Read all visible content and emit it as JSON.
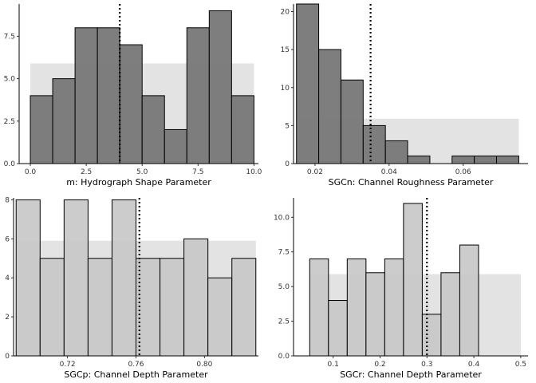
{
  "chart_data": [
    {
      "type": "bar",
      "xlabel": "m: Hydrograph Shape Parameter",
      "ylabel": "",
      "xlim": [
        -0.5,
        10.2
      ],
      "ylim": [
        0,
        9.4
      ],
      "xticks": [
        0.0,
        2.5,
        5.0,
        7.5,
        10.0
      ],
      "xtick_labels": [
        "0.0",
        "2.5",
        "5.0",
        "7.5",
        "10.0"
      ],
      "yticks": [
        0.0,
        2.5,
        5.0,
        7.5
      ],
      "ytick_labels": [
        "0.0",
        "2.5",
        "5.0",
        "7.5"
      ],
      "bins": [
        [
          0.0,
          1.0
        ],
        [
          1.0,
          2.0
        ],
        [
          2.0,
          3.0
        ],
        [
          3.0,
          4.0
        ],
        [
          4.0,
          5.0
        ],
        [
          5.0,
          6.0
        ],
        [
          6.0,
          7.0
        ],
        [
          7.0,
          8.0
        ],
        [
          8.0,
          9.0
        ],
        [
          9.0,
          10.0
        ]
      ],
      "values": [
        4,
        5,
        8,
        8,
        7,
        4,
        2,
        8,
        9,
        4
      ],
      "prior_band": {
        "x": [
          0.0,
          10.0
        ],
        "y": 5.9
      },
      "reference_line_x": 4.0,
      "bar_color": "#777777",
      "bar_opacity": 0.95
    },
    {
      "type": "bar",
      "xlabel": "SGCn: Channel Roughness Parameter",
      "ylabel": "",
      "xlim": [
        0.0142,
        0.0775
      ],
      "ylim": [
        0,
        21
      ],
      "xticks": [
        0.02,
        0.04,
        0.06
      ],
      "xtick_labels": [
        "0.02",
        "0.04",
        "0.06"
      ],
      "yticks": [
        0,
        5,
        10,
        15,
        20
      ],
      "ytick_labels": [
        "0",
        "5",
        "10",
        "15",
        "20"
      ],
      "bins": [
        [
          0.015,
          0.021
        ],
        [
          0.021,
          0.027
        ],
        [
          0.027,
          0.033
        ],
        [
          0.033,
          0.039
        ],
        [
          0.039,
          0.045
        ],
        [
          0.045,
          0.051
        ],
        [
          0.051,
          0.057
        ],
        [
          0.057,
          0.063
        ],
        [
          0.063,
          0.069
        ],
        [
          0.069,
          0.075
        ]
      ],
      "values": [
        21,
        15,
        11,
        5,
        3,
        1,
        0,
        1,
        1,
        1
      ],
      "prior_band": {
        "x": [
          0.015,
          0.075
        ],
        "y": 5.9
      },
      "reference_line_x": 0.035,
      "bar_color": "#777777",
      "bar_opacity": 0.95
    },
    {
      "type": "bar",
      "xlabel": "SGCp: Channel Depth Parameter",
      "ylabel": "",
      "xlim": [
        0.6885,
        0.8315
      ],
      "ylim": [
        0,
        8.1
      ],
      "xticks": [
        0.72,
        0.76,
        0.8
      ],
      "xtick_labels": [
        "0.72",
        "0.76",
        "0.80"
      ],
      "yticks": [
        0,
        2,
        4,
        6,
        8
      ],
      "ytick_labels": [
        "0",
        "2",
        "4",
        "6",
        "8"
      ],
      "bins": [
        [
          0.69,
          0.704
        ],
        [
          0.704,
          0.718
        ],
        [
          0.718,
          0.732
        ],
        [
          0.732,
          0.746
        ],
        [
          0.746,
          0.76
        ],
        [
          0.76,
          0.774
        ],
        [
          0.774,
          0.788
        ],
        [
          0.788,
          0.802
        ],
        [
          0.802,
          0.816
        ],
        [
          0.816,
          0.83
        ]
      ],
      "values": [
        8,
        5,
        8,
        5,
        8,
        5,
        5,
        6,
        4,
        5
      ],
      "prior_band": {
        "x": [
          0.69,
          0.83
        ],
        "y": 5.9
      },
      "reference_line_x": 0.762,
      "bar_color": "#c6c6c6",
      "bar_opacity": 0.9
    },
    {
      "type": "bar",
      "xlabel": "SGCr: Channel Depth Parameter",
      "ylabel": "",
      "xlim": [
        0.0155,
        0.5155
      ],
      "ylim": [
        0,
        11.4
      ],
      "xticks": [
        0.1,
        0.2,
        0.3,
        0.4,
        0.5
      ],
      "xtick_labels": [
        "0.1",
        "0.2",
        "0.3",
        "0.4",
        "0.5"
      ],
      "yticks": [
        0.0,
        2.5,
        5.0,
        7.5,
        10.0
      ],
      "ytick_labels": [
        "0.0",
        "2.5",
        "5.0",
        "7.5",
        "10.0"
      ],
      "bins": [
        [
          0.05,
          0.09
        ],
        [
          0.09,
          0.13
        ],
        [
          0.13,
          0.17
        ],
        [
          0.17,
          0.21
        ],
        [
          0.21,
          0.25
        ],
        [
          0.25,
          0.29
        ],
        [
          0.29,
          0.33
        ],
        [
          0.33,
          0.37
        ],
        [
          0.37,
          0.41
        ],
        [
          0.41,
          0.45
        ]
      ],
      "values": [
        7,
        4,
        7,
        6,
        7,
        11,
        3,
        6,
        8,
        0
      ],
      "prior_band": {
        "x": [
          0.05,
          0.5
        ],
        "y": 5.9
      },
      "reference_line_x": 0.3,
      "bar_color": "#c6c6c6",
      "bar_opacity": 0.9
    }
  ]
}
